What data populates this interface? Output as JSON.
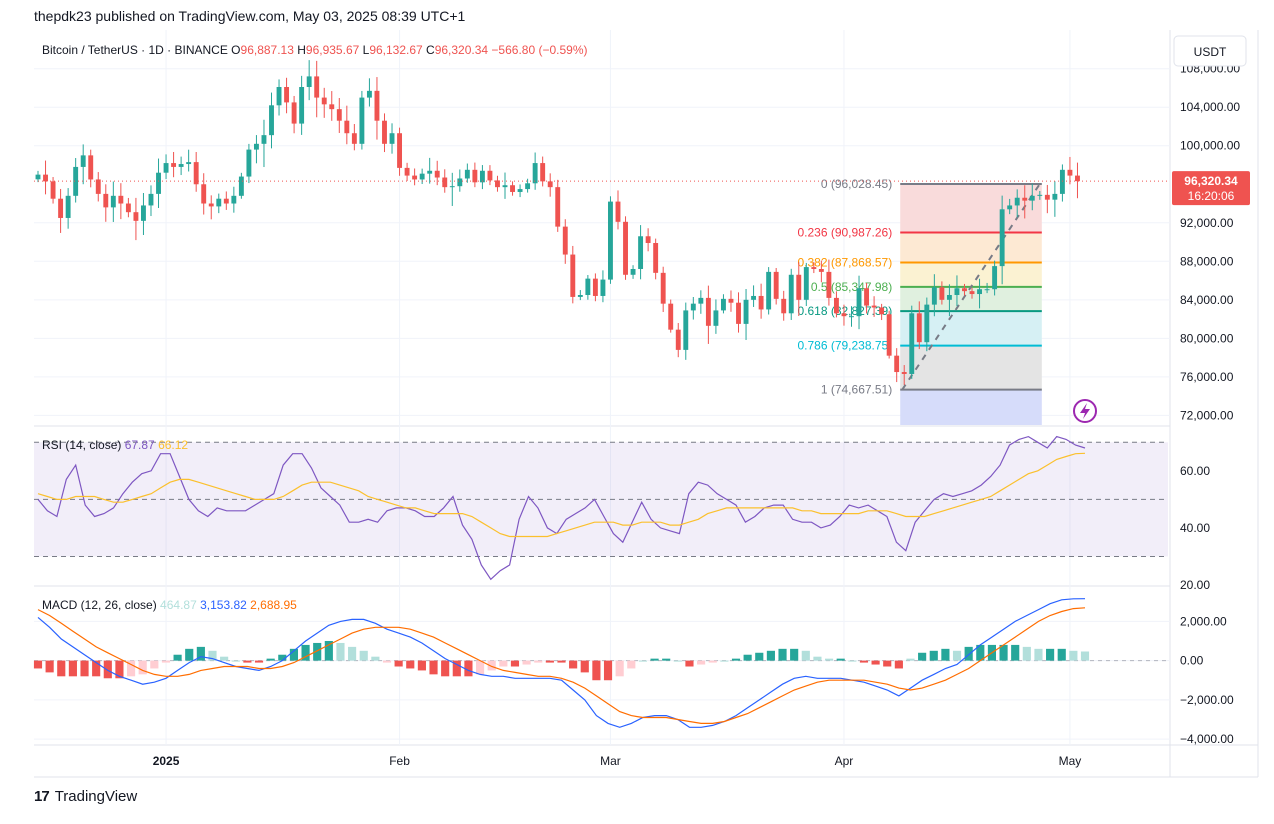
{
  "header": {
    "published_text": "thepdk23 published on TradingView.com, May 03, 2025 08:39 UTC+1"
  },
  "footer": {
    "logo_glyph": "17",
    "brand": "TradingView"
  },
  "colors": {
    "up": "#26a69a",
    "down": "#ef5350",
    "rsi": "#7e57c2",
    "rsi_ma": "#fbc02d",
    "macd": "#2962ff",
    "signal": "#ff6d00",
    "grid": "#f0f3fa",
    "axis_text": "#131722"
  },
  "chart_data": [
    {
      "type": "candlestick",
      "title": "Bitcoin / TetherUS · 1D · BINANCE",
      "ohlc_label": {
        "o_key": "O",
        "o": "96,887.13",
        "h_key": "H",
        "h": "96,935.67",
        "l_key": "L",
        "l": "96,132.67",
        "c_key": "C",
        "c": "96,320.34",
        "change": "−566.80 (−0.59%)"
      },
      "currency": "USDT",
      "ylim": [
        71000,
        111500
      ],
      "yticks": [
        "108,000.00",
        "104,000.00",
        "100,000.00",
        "92,000.00",
        "88,000.00",
        "84,000.00",
        "80,000.00",
        "76,000.00",
        "72,000.00"
      ],
      "ytick_values": [
        108000,
        104000,
        100000,
        92000,
        88000,
        84000,
        80000,
        76000,
        72000
      ],
      "last_price": {
        "value": 96320.34,
        "label": "96,320.34",
        "countdown": "16:20:06"
      },
      "x_start": "2024-12-15",
      "x_end": "2025-05-03",
      "xticks": [
        {
          "date": "2025-01-01",
          "label": "2025"
        },
        {
          "date": "2025-02-01",
          "label": "Feb"
        },
        {
          "date": "2025-03-01",
          "label": "Mar"
        },
        {
          "date": "2025-04-01",
          "label": "Apr"
        },
        {
          "date": "2025-05-01",
          "label": "May"
        }
      ],
      "closes": [
        97000,
        96300,
        94500,
        92500,
        94800,
        97800,
        99000,
        96500,
        95000,
        93600,
        94800,
        94000,
        93100,
        92200,
        93800,
        95000,
        97200,
        98200,
        97800,
        98100,
        98300,
        96000,
        94000,
        93700,
        94500,
        94000,
        94800,
        96800,
        99600,
        100200,
        101100,
        104200,
        106100,
        104500,
        102300,
        106100,
        107200,
        105000,
        104300,
        103800,
        102600,
        101300,
        100200,
        105000,
        105700,
        102600,
        100200,
        101300,
        97700,
        96900,
        96500,
        97100,
        97400,
        96700,
        95700,
        95800,
        96600,
        97500,
        96200,
        97400,
        96400,
        95700,
        95900,
        95200,
        95500,
        96100,
        98200,
        96300,
        95700,
        91600,
        88700,
        84300,
        84500,
        86200,
        84400,
        86100,
        94200,
        92100,
        86600,
        87200,
        90600,
        89900,
        86800,
        83600,
        80900,
        78800,
        82900,
        83600,
        84200,
        81300,
        82900,
        84100,
        83700,
        81500,
        84000,
        84400,
        83000,
        86900,
        84100,
        82600,
        86600,
        84000,
        87400,
        87200,
        86900,
        84200,
        82600,
        82300,
        82300,
        85200,
        83400,
        83200,
        82500,
        78200,
        76500,
        76300,
        82600,
        79600,
        83500,
        85300,
        84000,
        84500,
        85200,
        84900,
        84600,
        85100,
        85100,
        87500,
        93400,
        93800,
        94600,
        94300,
        94800,
        94900,
        94400,
        95000,
        97500,
        96900,
        96320.34
      ],
      "fibonacci": {
        "high": 96028.45,
        "low": 74667.51,
        "start_date": "2025-04-09",
        "end_date": "2025-04-27",
        "levels": [
          {
            "ratio": 0,
            "price": 96028.45,
            "label": "0 (96,028.45)",
            "color": "#787b86",
            "fill": "#f9dbdb"
          },
          {
            "ratio": 0.236,
            "price": 90987.26,
            "label": "0.236 (90,987.26)",
            "color": "#f23645",
            "fill": "#fde9d3"
          },
          {
            "ratio": 0.382,
            "price": 87868.57,
            "label": "0.382 (87,868.57)",
            "color": "#ff9800",
            "fill": "#fbf2d2"
          },
          {
            "ratio": 0.5,
            "price": 85347.98,
            "label": "0.5 (85,347.98)",
            "color": "#4caf50",
            "fill": "#e0f0df"
          },
          {
            "ratio": 0.618,
            "price": 82827.39,
            "label": "0.618 (82,827.39)",
            "color": "#089981",
            "fill": "#d6f0f4"
          },
          {
            "ratio": 0.786,
            "price": 79238.75,
            "label": "0.786 (79,238.75)",
            "color": "#00bcd4",
            "fill": "#e4e4e4"
          },
          {
            "ratio": 1,
            "price": 74667.51,
            "label": "1 (74,667.51)",
            "color": "#787b86",
            "fill": "#d6dcfa"
          }
        ]
      }
    },
    {
      "type": "line",
      "title": "RSI (14, close)",
      "values_text": {
        "rsi": "67.87",
        "ma": "66.12"
      },
      "ylim": [
        20,
        75
      ],
      "yticks": [
        "60.00",
        "40.00",
        "20.00"
      ],
      "ytick_values": [
        60,
        40,
        20
      ],
      "bands": [
        70,
        50,
        30
      ],
      "series": [
        {
          "name": "RSI",
          "values": [
            50,
            46,
            44,
            57,
            62,
            48,
            44,
            45,
            47,
            52,
            56,
            59,
            60,
            66,
            66,
            58,
            50,
            46,
            44,
            47,
            46,
            46,
            46,
            48,
            50,
            52,
            62,
            66,
            66,
            61,
            54,
            51,
            48,
            42,
            42,
            43,
            42,
            46,
            47,
            47,
            46,
            44,
            44,
            47,
            51,
            41,
            36,
            27,
            22,
            25,
            27,
            43,
            51,
            47,
            40,
            38,
            43,
            45,
            47,
            50,
            44,
            38,
            35,
            42,
            49,
            43,
            40,
            39,
            38,
            52,
            56,
            55,
            52,
            50,
            48,
            42,
            44,
            47,
            48,
            48,
            43,
            42,
            42,
            40,
            41,
            44,
            48,
            47,
            48,
            46,
            44,
            35,
            32,
            42,
            46,
            50,
            52,
            51,
            52,
            53,
            55,
            58,
            62,
            69,
            71,
            72,
            70,
            68,
            72,
            71,
            69,
            68
          ]
        },
        {
          "name": "MA",
          "values": [
            52,
            51,
            50,
            50,
            51,
            51,
            51,
            50,
            49,
            49,
            50,
            51,
            52,
            54,
            56,
            57,
            57,
            56,
            55,
            54,
            53,
            52,
            51,
            50,
            50,
            50,
            51,
            53,
            55,
            56,
            56,
            56,
            55,
            54,
            53,
            51,
            50,
            49,
            48,
            47,
            47,
            46,
            45,
            45,
            45,
            45,
            44,
            42,
            40,
            38,
            37,
            37,
            37,
            37,
            37,
            38,
            39,
            40,
            41,
            42,
            42,
            42,
            41,
            41,
            42,
            42,
            42,
            41,
            41,
            42,
            43,
            45,
            46,
            47,
            47,
            47,
            47,
            47,
            47,
            47,
            47,
            46,
            46,
            45,
            45,
            45,
            45,
            45,
            46,
            46,
            46,
            45,
            44,
            44,
            44,
            45,
            46,
            47,
            48,
            49,
            50,
            51,
            53,
            55,
            57,
            59,
            60,
            62,
            64,
            65,
            66,
            66.12
          ]
        }
      ]
    },
    {
      "type": "line",
      "title": "MACD (12, 26, close)",
      "values_text": {
        "hist": "464.87",
        "macd": "3,153.82",
        "signal": "2,688.95"
      },
      "ylim": [
        -4300,
        3700
      ],
      "yticks": [
        "2,000.00",
        "0.00",
        "−2,000.00",
        "−4,000.00"
      ],
      "ytick_values": [
        2000,
        0,
        -2000,
        -4000
      ],
      "series": [
        {
          "name": "MACD",
          "values": [
            2200,
            1700,
            1100,
            700,
            300,
            -100,
            -500,
            -800,
            -1000,
            -1200,
            -1100,
            -900,
            -500,
            -100,
            200,
            100,
            -100,
            -300,
            -400,
            -500,
            -300,
            0,
            500,
            1000,
            1400,
            1800,
            2000,
            2100,
            2100,
            1900,
            1600,
            1400,
            1200,
            900,
            500,
            100,
            -200,
            -500,
            -700,
            -800,
            -800,
            -900,
            -900,
            -900,
            -900,
            -1000,
            -1500,
            -2000,
            -2800,
            -3200,
            -3400,
            -3200,
            -2900,
            -2800,
            -2800,
            -3000,
            -3400,
            -3400,
            -3300,
            -3100,
            -2800,
            -2400,
            -2000,
            -1600,
            -1200,
            -900,
            -800,
            -900,
            -900,
            -900,
            -1000,
            -1100,
            -1300,
            -1500,
            -1800,
            -1400,
            -1000,
            -700,
            -400,
            -200,
            300,
            800,
            1200,
            1600,
            2000,
            2300,
            2600,
            2900,
            3100,
            3150,
            3153.82
          ]
        },
        {
          "name": "Signal",
          "values": [
            2600,
            2300,
            1900,
            1500,
            1100,
            700,
            400,
            100,
            -200,
            -500,
            -700,
            -800,
            -800,
            -700,
            -500,
            -400,
            -300,
            -300,
            -300,
            -400,
            -400,
            -300,
            -100,
            200,
            500,
            800,
            1100,
            1400,
            1600,
            1700,
            1700,
            1700,
            1600,
            1400,
            1200,
            900,
            600,
            300,
            0,
            -300,
            -500,
            -600,
            -700,
            -800,
            -800,
            -900,
            -1100,
            -1400,
            -1800,
            -2200,
            -2600,
            -2800,
            -2900,
            -2900,
            -2900,
            -3000,
            -3100,
            -3200,
            -3200,
            -3100,
            -2900,
            -2700,
            -2400,
            -2100,
            -1800,
            -1500,
            -1300,
            -1100,
            -1000,
            -1000,
            -1000,
            -1000,
            -1100,
            -1200,
            -1400,
            -1500,
            -1400,
            -1200,
            -1000,
            -700,
            -400,
            0,
            400,
            800,
            1200,
            1600,
            2000,
            2300,
            2500,
            2650,
            2688.95
          ]
        }
      ]
    }
  ]
}
